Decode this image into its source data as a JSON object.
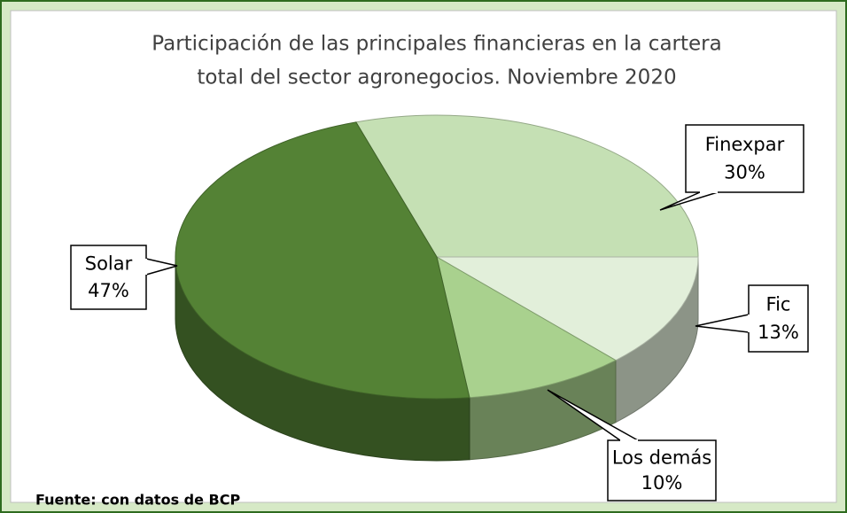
{
  "chart_data": {
    "type": "pie",
    "title": "Participación de las principales financieras en la cartera total del sector agronegocios. Noviembre 2020",
    "title_lines": [
      "Participación de las principales financieras en la cartera",
      "total del sector agronegocios. Noviembre 2020"
    ],
    "categories": [
      "Finexpar",
      "Fic",
      "Los demás",
      "Solar"
    ],
    "values": [
      30,
      13,
      10,
      47
    ],
    "value_labels": [
      "30%",
      "13%",
      "10%",
      "47%"
    ],
    "colors": [
      "#c5e0b4",
      "#e2efda",
      "#a9d18e",
      "#548235"
    ],
    "source": "Fuente: con datos de BCP"
  }
}
